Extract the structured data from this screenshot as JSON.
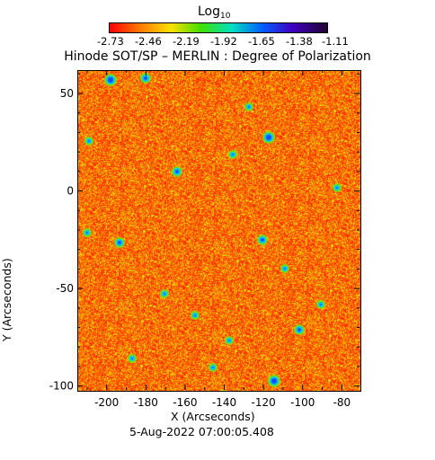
{
  "colorbar": {
    "label": "Log",
    "label_subscript": "10",
    "ticks": [
      "-2.73",
      "-2.46",
      "-2.19",
      "-1.92",
      "-1.65",
      "-1.38",
      "-1.11"
    ],
    "colors": [
      "#ff0000",
      "#ff7a00",
      "#ffe000",
      "#3fe000",
      "#00e0c0",
      "#0060ff",
      "#4000c0",
      "#200030"
    ]
  },
  "title": "Hinode SOT/SP – MERLIN : Degree of Polarization",
  "axes": {
    "xlabel": "X (Arcseconds)",
    "ylabel": "Y (Arcseconds)",
    "xticks": [
      "-200",
      "-180",
      "-160",
      "-140",
      "-120",
      "-100",
      "-80"
    ],
    "yticks": [
      "50",
      "0",
      "-50",
      "-100"
    ],
    "xrange": [
      -215,
      -71
    ],
    "yrange": [
      -102,
      62
    ]
  },
  "date": "5-Aug-2022 07:00:05.408",
  "map": {
    "dominant_colors": [
      "#ff3a00",
      "#ff7800",
      "#ffb000",
      "#e8e000"
    ],
    "feature_colors": [
      "#00c8ff",
      "#1050ff",
      "#000060"
    ]
  }
}
